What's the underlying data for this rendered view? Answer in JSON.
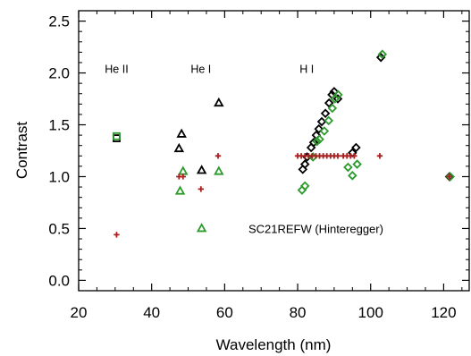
{
  "chart_data": {
    "type": "scatter",
    "title": "",
    "xlabel": "Wavelength (nm)",
    "ylabel": "Contrast",
    "xlim": [
      20,
      127
    ],
    "ylim": [
      -0.1,
      2.6
    ],
    "xticks": [
      20,
      40,
      60,
      80,
      100,
      120
    ],
    "yticks": [
      0.0,
      0.5,
      1.0,
      1.5,
      2.0,
      2.5
    ],
    "xtick_labels": [
      "20",
      "40",
      "60",
      "80",
      "100",
      "120"
    ],
    "ytick_labels": [
      "0.0",
      "0.5",
      "1.0",
      "1.5",
      "2.0",
      "2.5"
    ],
    "grid": false,
    "annotations": [
      {
        "text": "He II",
        "x": 30.4,
        "y": 2.0
      },
      {
        "text": "He I",
        "x": 53.5,
        "y": 2.0
      },
      {
        "text": "H I",
        "x": 82.5,
        "y": 2.0
      },
      {
        "text": "SC21REFW (Hinteregger)",
        "x": 85,
        "y": 0.5,
        "color": "#aa1f1f"
      }
    ],
    "series": [
      {
        "name": "",
        "marker": "square",
        "color": "#000000",
        "points": [
          [
            30.4,
            1.37
          ]
        ]
      },
      {
        "name": "",
        "marker": "square",
        "color": "#2d9a2d",
        "points": [
          [
            30.4,
            1.39
          ]
        ]
      },
      {
        "name": "",
        "marker": "triangle",
        "color": "#000000",
        "points": [
          [
            47.5,
            1.27
          ],
          [
            48.2,
            1.41
          ],
          [
            53.7,
            1.06
          ],
          [
            58.4,
            1.71
          ]
        ]
      },
      {
        "name": "",
        "marker": "triangle",
        "color": "#2d9a2d",
        "points": [
          [
            47.8,
            0.86
          ],
          [
            48.6,
            1.05
          ],
          [
            53.7,
            0.5
          ],
          [
            58.4,
            1.05
          ]
        ]
      },
      {
        "name": "",
        "marker": "diamond",
        "color": "#000000",
        "points": [
          [
            81.4,
            1.07
          ],
          [
            82.0,
            1.12
          ],
          [
            82.6,
            1.19
          ],
          [
            83.7,
            1.28
          ],
          [
            84.4,
            1.33
          ],
          [
            85.1,
            1.4
          ],
          [
            85.8,
            1.46
          ],
          [
            86.6,
            1.53
          ],
          [
            87.6,
            1.61
          ],
          [
            88.6,
            1.71
          ],
          [
            89.4,
            1.79
          ],
          [
            90.0,
            1.82
          ],
          [
            91.0,
            1.75
          ],
          [
            95.0,
            1.23
          ],
          [
            96.0,
            1.28
          ],
          [
            102.8,
            2.15
          ],
          [
            121.6,
            1.0
          ]
        ]
      },
      {
        "name": "",
        "marker": "diamond",
        "color": "#2d9a2d",
        "points": [
          [
            81.2,
            0.87
          ],
          [
            82.0,
            0.91
          ],
          [
            84.2,
            1.19
          ],
          [
            85.3,
            1.34
          ],
          [
            86.0,
            1.36
          ],
          [
            87.3,
            1.44
          ],
          [
            88.5,
            1.54
          ],
          [
            89.5,
            1.66
          ],
          [
            90.2,
            1.75
          ],
          [
            91.1,
            1.79
          ],
          [
            93.8,
            1.09
          ],
          [
            95.0,
            1.01
          ],
          [
            96.3,
            1.12
          ],
          [
            103.2,
            2.18
          ],
          [
            121.8,
            1.0
          ]
        ]
      },
      {
        "name": "",
        "marker": "plus",
        "color": "#aa1f1f",
        "points": [
          [
            30.4,
            0.44
          ],
          [
            47.5,
            1.0
          ],
          [
            48.6,
            1.0
          ],
          [
            53.5,
            0.88
          ],
          [
            58.2,
            1.2
          ],
          [
            80.0,
            1.2
          ],
          [
            81.0,
            1.2
          ],
          [
            82.0,
            1.2
          ],
          [
            83.0,
            1.2
          ],
          [
            84.0,
            1.2
          ],
          [
            85.0,
            1.2
          ],
          [
            86.0,
            1.2
          ],
          [
            87.0,
            1.2
          ],
          [
            88.0,
            1.2
          ],
          [
            89.0,
            1.2
          ],
          [
            90.0,
            1.2
          ],
          [
            91.0,
            1.2
          ],
          [
            92.5,
            1.2
          ],
          [
            93.5,
            1.2
          ],
          [
            94.5,
            1.2
          ],
          [
            95.5,
            1.2
          ],
          [
            102.5,
            1.2
          ],
          [
            121.6,
            1.0
          ]
        ]
      }
    ]
  }
}
